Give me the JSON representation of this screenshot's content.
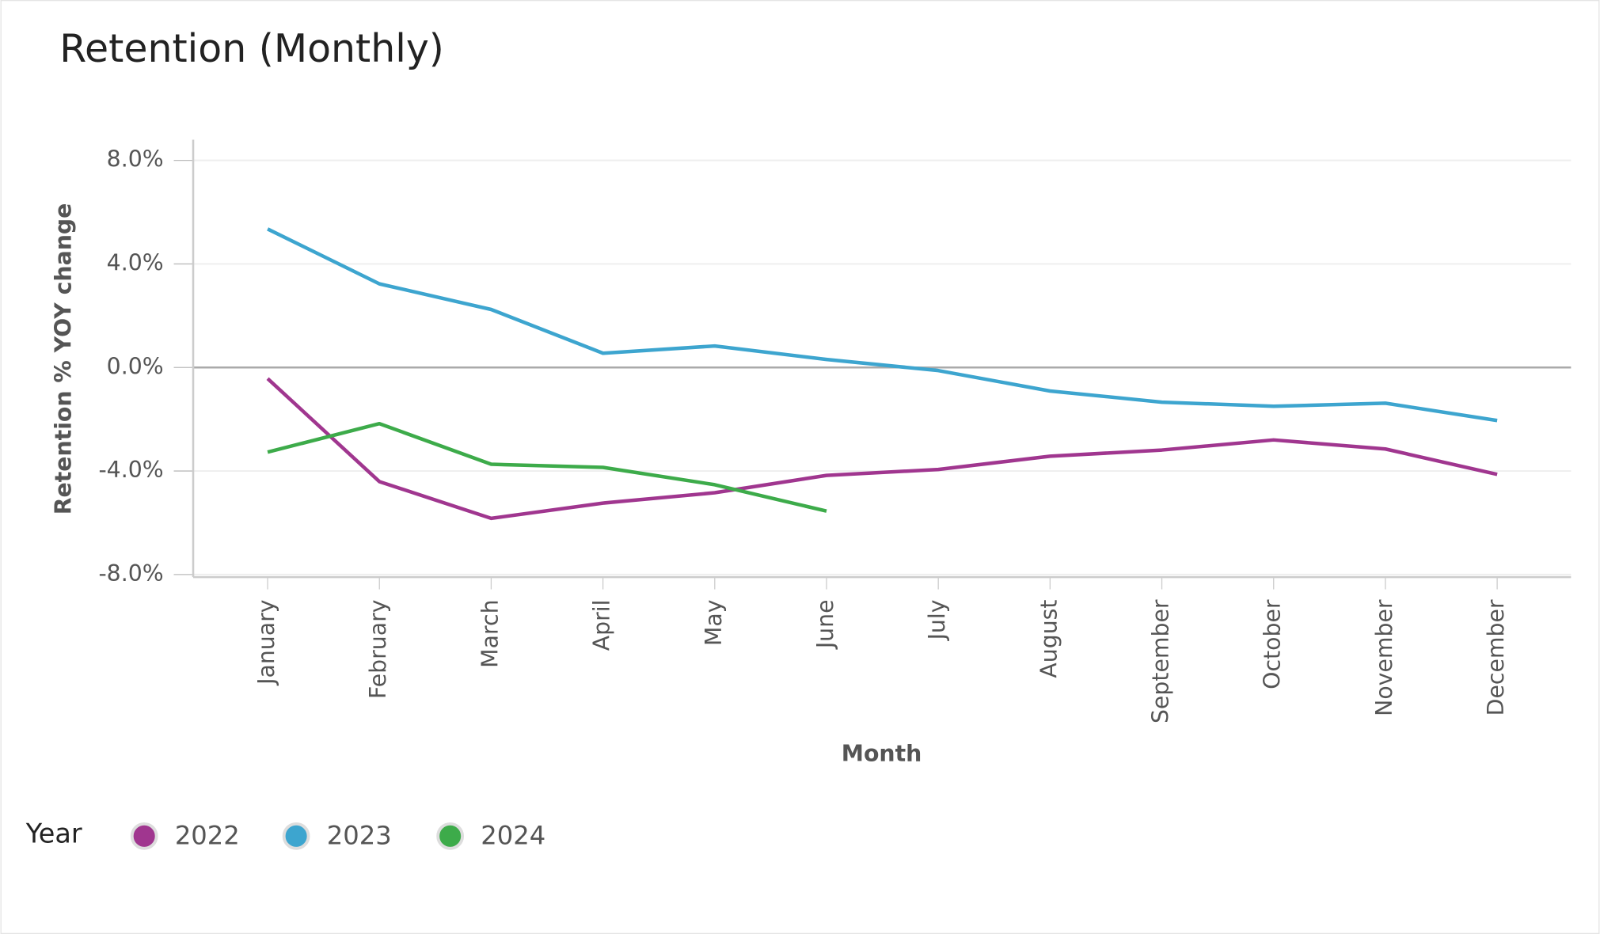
{
  "chart_data": {
    "type": "line",
    "title": "Retention (Monthly)",
    "x_label": "Month",
    "y_label": "Retention % YOY change",
    "legend_title": "Year",
    "categories": [
      "January",
      "February",
      "March",
      "April",
      "May",
      "June",
      "July",
      "August",
      "September",
      "October",
      "November",
      "December"
    ],
    "series": [
      {
        "name": "2022",
        "color": "#a0368f",
        "values": [
          -0.43,
          -4.41,
          -5.83,
          -5.24,
          -4.84,
          -4.17,
          -3.94,
          -3.43,
          -3.19,
          -2.8,
          -3.15,
          -4.13
        ]
      },
      {
        "name": "2023",
        "color": "#3da5cf",
        "values": [
          5.35,
          3.23,
          2.24,
          0.55,
          0.83,
          0.31,
          -0.12,
          -0.91,
          -1.34,
          -1.5,
          -1.38,
          -2.05
        ]
      },
      {
        "name": "2024",
        "color": "#3dab4a",
        "values": [
          -3.27,
          -2.17,
          -3.74,
          -3.86,
          -4.53,
          -5.55,
          null,
          null,
          null,
          null,
          null,
          null
        ]
      }
    ],
    "ylim": [
      -8.1,
      8.8
    ],
    "yticks": [
      {
        "value": -8,
        "label": "-8.0%"
      },
      {
        "value": -4,
        "label": "-4.0%"
      },
      {
        "value": 0,
        "label": "0.0%"
      },
      {
        "value": 4,
        "label": "4.0%"
      },
      {
        "value": 8,
        "label": "8.0%"
      }
    ],
    "grid": true
  }
}
